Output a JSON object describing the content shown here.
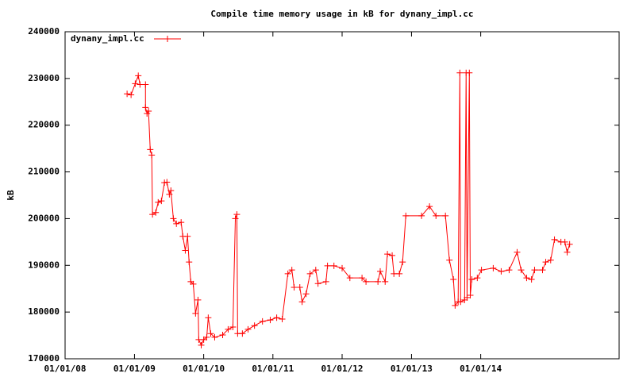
{
  "chart_data": {
    "type": "line",
    "title": "Compile time memory usage in kB for dynany_impl.cc",
    "y_label": "kB",
    "legend": "top-left",
    "xlim": [
      "2008-01-01",
      "2016-01-01"
    ],
    "xticks": [
      {
        "value": "2008-01-01",
        "label": "01/01/08"
      },
      {
        "value": "2009-01-01",
        "label": "01/01/09"
      },
      {
        "value": "2010-01-01",
        "label": "01/01/10"
      },
      {
        "value": "2011-01-01",
        "label": "01/01/11"
      },
      {
        "value": "2012-01-01",
        "label": "01/01/12"
      },
      {
        "value": "2013-01-01",
        "label": "01/01/13"
      },
      {
        "value": "2014-01-01",
        "label": "01/01/14"
      }
    ],
    "ylim": [
      170000,
      240000
    ],
    "yticks": [
      170000,
      180000,
      190000,
      200000,
      210000,
      220000,
      230000,
      240000
    ],
    "x": [
      "2008-11-23",
      "2008-12-14",
      "2009-01-05",
      "2009-01-21",
      "2009-01-30",
      "2009-02-28",
      "2009-02-28",
      "2009-03-08",
      "2009-03-16",
      "2009-03-25",
      "2009-04-02",
      "2009-04-06",
      "2009-04-23",
      "2009-05-06",
      "2009-05-23",
      "2009-06-08",
      "2009-06-21",
      "2009-07-04",
      "2009-07-12",
      "2009-07-25",
      "2009-08-10",
      "2009-09-04",
      "2009-09-13",
      "2009-09-26",
      "2009-10-08",
      "2009-10-16",
      "2009-10-25",
      "2009-11-07",
      "2009-11-19",
      "2009-12-02",
      "2009-12-06",
      "2009-12-19",
      "2010-01-01",
      "2010-01-17",
      "2010-01-25",
      "2010-02-07",
      "2010-02-28",
      "2010-04-11",
      "2010-05-10",
      "2010-06-04",
      "2010-06-17",
      "2010-06-25",
      "2010-06-29",
      "2010-07-24",
      "2010-08-23",
      "2010-09-26",
      "2010-11-07",
      "2010-12-18",
      "2011-01-21",
      "2011-02-19",
      "2011-03-21",
      "2011-04-11",
      "2011-04-23",
      "2011-05-23",
      "2011-06-04",
      "2011-06-25",
      "2011-07-16",
      "2011-08-15",
      "2011-08-27",
      "2011-10-08",
      "2011-10-16",
      "2011-11-19",
      "2012-01-01",
      "2012-02-11",
      "2012-04-15",
      "2012-05-06",
      "2012-07-08",
      "2012-07-20",
      "2012-08-15",
      "2012-08-27",
      "2012-09-21",
      "2012-09-30",
      "2012-10-29",
      "2012-11-15",
      "2012-12-02",
      "2013-02-23",
      "2013-04-06",
      "2013-05-10",
      "2013-06-29",
      "2013-07-20",
      "2013-08-10",
      "2013-08-19",
      "2013-09-04",
      "2013-09-13",
      "2013-09-17",
      "2013-10-08",
      "2013-10-16",
      "2013-10-21",
      "2013-11-02",
      "2013-11-07",
      "2013-11-15",
      "2013-12-14",
      "2014-01-05",
      "2014-03-08",
      "2014-04-19",
      "2014-05-31",
      "2014-07-12",
      "2014-08-02",
      "2014-08-31",
      "2014-09-26",
      "2014-10-12",
      "2014-11-23",
      "2014-12-10",
      "2015-01-05",
      "2015-01-25",
      "2015-02-28",
      "2015-03-21",
      "2015-04-02",
      "2015-04-15"
    ],
    "series": [
      {
        "name": "dynany_impl.cc",
        "color": "#ff0000",
        "values": [
          226700,
          226500,
          228900,
          230600,
          228700,
          228700,
          223800,
          222500,
          223000,
          214800,
          213600,
          200900,
          201300,
          203500,
          203800,
          207700,
          207800,
          205200,
          206000,
          200000,
          198900,
          199200,
          196200,
          193200,
          196200,
          190700,
          186500,
          186000,
          179700,
          182600,
          174100,
          172900,
          174100,
          174600,
          178800,
          175400,
          174600,
          175100,
          176300,
          176800,
          200000,
          200900,
          175400,
          175400,
          176300,
          177100,
          178000,
          178300,
          178800,
          178500,
          188200,
          189000,
          185300,
          185300,
          182200,
          183900,
          188200,
          189000,
          186100,
          186500,
          189900,
          189900,
          189400,
          187300,
          187300,
          186500,
          186500,
          188700,
          186500,
          192400,
          192100,
          188200,
          188200,
          190700,
          200600,
          200600,
          202600,
          200600,
          200600,
          191100,
          187000,
          181400,
          182200,
          231200,
          182200,
          182600,
          231200,
          183100,
          231200,
          183600,
          187000,
          187300,
          189000,
          189400,
          188700,
          189000,
          192800,
          189000,
          187300,
          187000,
          189000,
          189000,
          190700,
          191100,
          195500,
          195000,
          195000,
          192800,
          194500
        ]
      }
    ]
  }
}
